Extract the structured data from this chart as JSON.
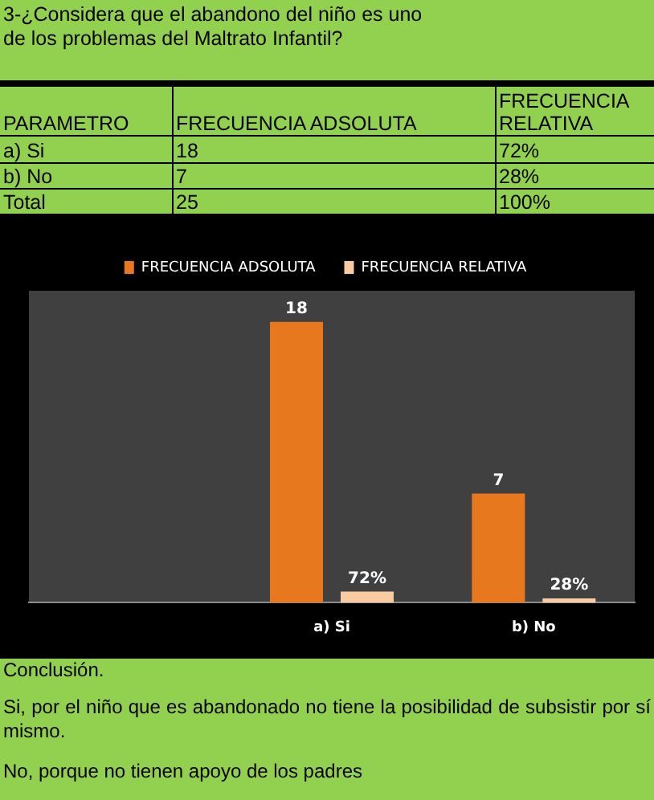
{
  "chart_data": {
    "type": "bar",
    "title": "3-¿Considera  que el abandono del niño es uno\nde los problemas del Maltrato Infantil?",
    "categories": [
      null,
      "a) Si",
      "b) No"
    ],
    "series": [
      {
        "name": "FRECUENCIA ADSOLUTA",
        "color": "#e8781e",
        "values": [
          null,
          18,
          7
        ],
        "value_labels": [
          null,
          "18",
          "7"
        ]
      },
      {
        "name": "FRECUENCIA RELATIVA",
        "color": "#f8cba0",
        "axis": "y2",
        "values": [
          null,
          72,
          28
        ],
        "value_labels": [
          null,
          "72%",
          "28%"
        ]
      }
    ],
    "ylim": [
      0,
      20
    ],
    "y2lim": [
      0,
      2000
    ],
    "tick_labels": "x",
    "grid": false,
    "legend": "top",
    "annotations": [
      "PARAMETRO",
      "Total",
      "25",
      "100%",
      "Conclusión.",
      "Si, por el niño que es abandonado no tiene la posibilidad de subsistir por sí mismo.",
      "No, porque no tienen apoyo de los padres"
    ]
  }
}
